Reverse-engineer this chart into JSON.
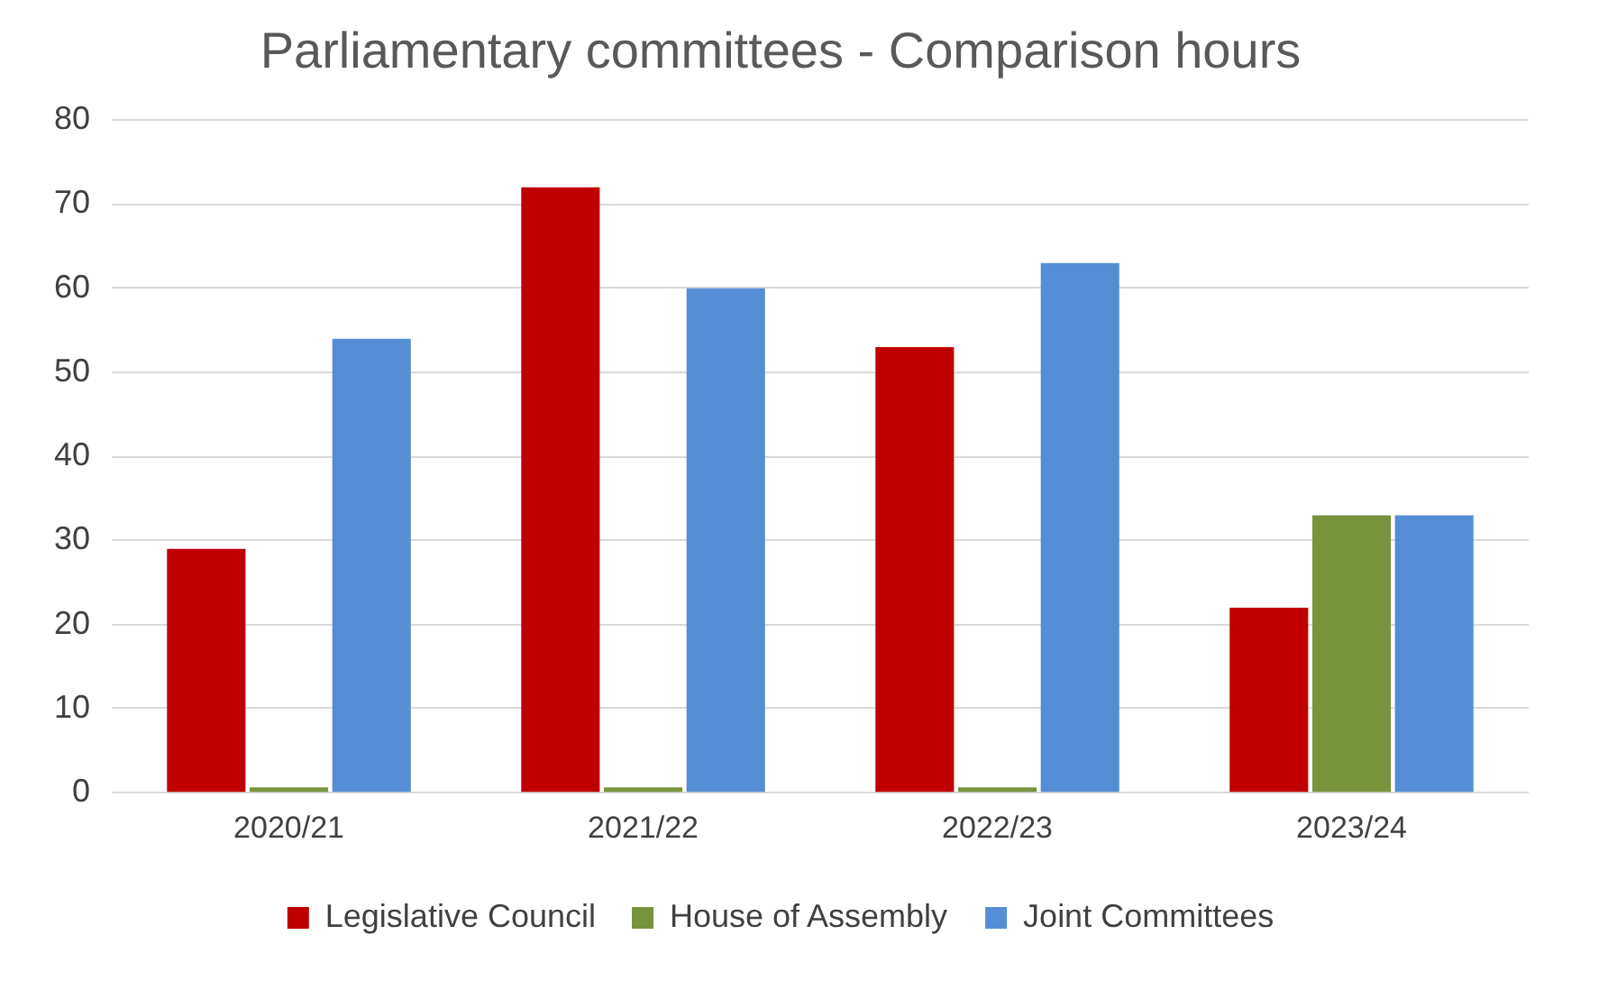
{
  "chart_data": {
    "type": "bar",
    "title": "Parliamentary committees - Comparison hours",
    "categories": [
      "2020/21",
      "2021/22",
      "2022/23",
      "2023/24"
    ],
    "series": [
      {
        "name": "Legislative Council",
        "color": "#c00000",
        "values": [
          29,
          72,
          53,
          22
        ]
      },
      {
        "name": "House of Assembly",
        "color": "#77933c",
        "values": [
          0,
          0,
          0,
          33
        ]
      },
      {
        "name": "Joint Committees",
        "color": "#558ed5",
        "values": [
          54,
          60,
          63,
          33
        ]
      }
    ],
    "ylim": [
      0,
      80
    ],
    "yticks": [
      0,
      10,
      20,
      30,
      40,
      50,
      60,
      70,
      80
    ],
    "grid": "y",
    "legend": "bottom"
  }
}
